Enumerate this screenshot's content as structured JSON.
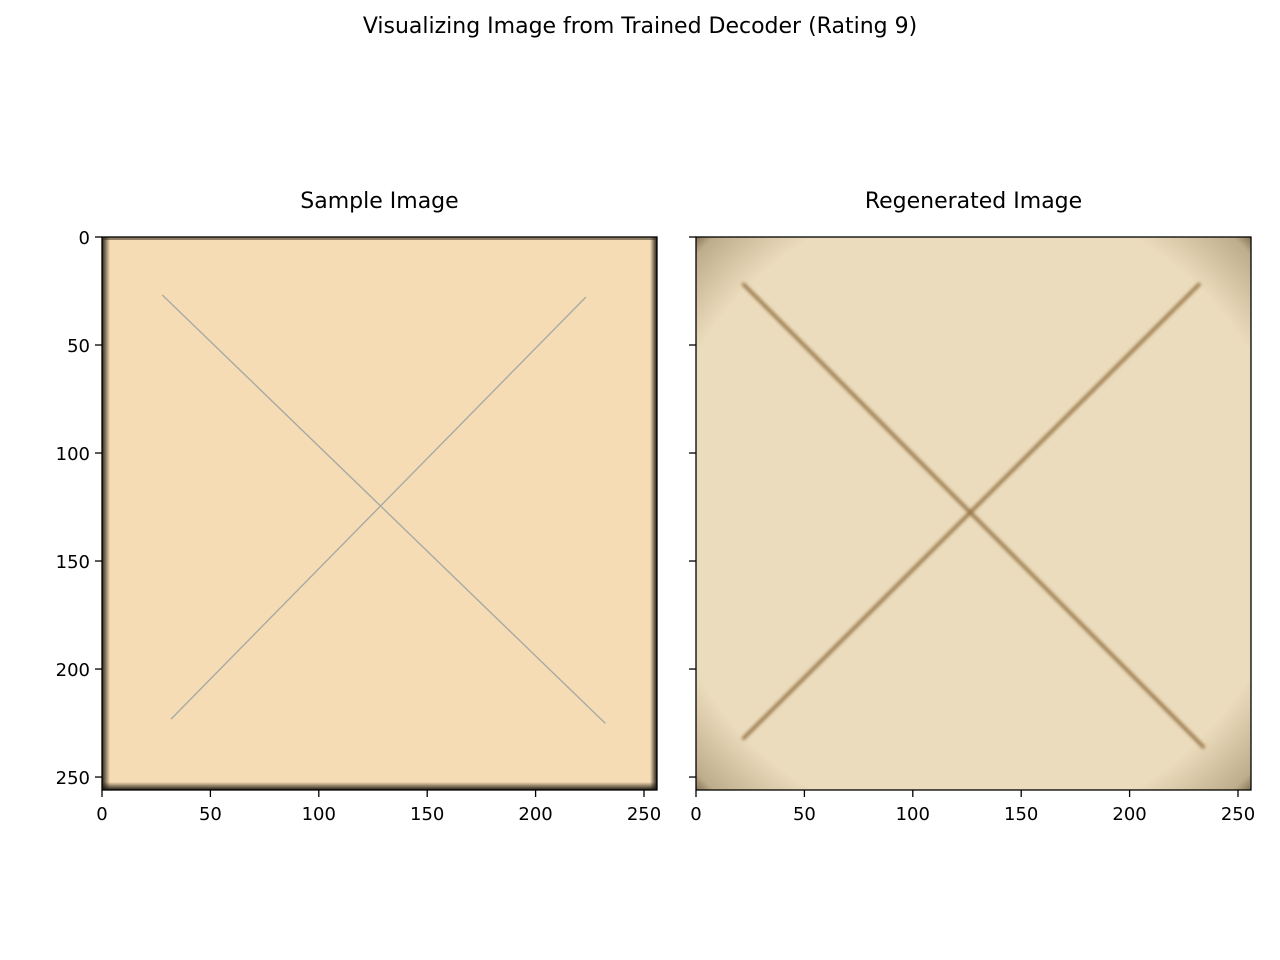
{
  "figure": {
    "suptitle": "Visualizing Image from Trained Decoder (Rating 9)"
  },
  "chart_data": [
    {
      "type": "image",
      "title": "Sample Image",
      "xlim": [
        0,
        256
      ],
      "ylim": [
        256,
        0
      ],
      "xticks": [
        0,
        50,
        100,
        150,
        200,
        250
      ],
      "yticks": [
        0,
        50,
        100,
        150,
        200,
        250
      ],
      "xtick_labels": [
        "0",
        "50",
        "100",
        "150",
        "200",
        "250"
      ],
      "ytick_labels": [
        "0",
        "50",
        "100",
        "150",
        "200",
        "250"
      ],
      "show_ytick_labels": true,
      "background_color": "#f6dcb4",
      "line_color": "#a7aba5",
      "lines": [
        {
          "x": [
            28,
            232
          ],
          "y": [
            27,
            225
          ]
        },
        {
          "x": [
            223,
            32
          ],
          "y": [
            28,
            223
          ]
        }
      ]
    },
    {
      "type": "image",
      "title": "Regenerated Image",
      "xlim": [
        0,
        256
      ],
      "ylim": [
        256,
        0
      ],
      "xticks": [
        0,
        50,
        100,
        150,
        200,
        250
      ],
      "yticks": [
        0,
        50,
        100,
        150,
        200,
        250
      ],
      "xtick_labels": [
        "0",
        "50",
        "100",
        "150",
        "200",
        "250"
      ],
      "ytick_labels": [],
      "show_ytick_labels": false,
      "background_color": "#ebdcbd",
      "line_color": "#93703f",
      "lines": [
        {
          "x": [
            22,
            234
          ],
          "y": [
            22,
            236
          ]
        },
        {
          "x": [
            232,
            22
          ],
          "y": [
            22,
            232
          ]
        }
      ]
    }
  ]
}
